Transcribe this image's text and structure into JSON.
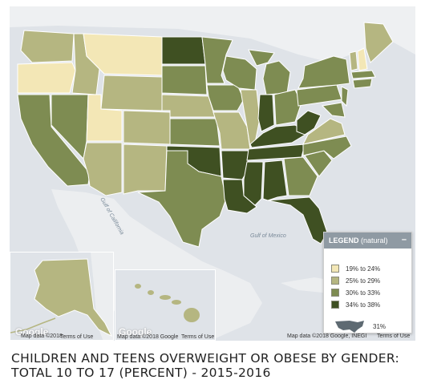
{
  "map": {
    "water_labels": [
      "Gulf of California",
      "Gulf of Mexico"
    ],
    "attribution_main": "Map data ©2018 Google, INEGI",
    "terms_main": "Terms of Use",
    "attribution_alaska": "Map data ©2018",
    "terms_alaska": "Terms of Use",
    "attribution_hawaii": "Map data ©2018 Google",
    "terms_hawaii": "Terms of Use",
    "logo_text": "Google"
  },
  "legend": {
    "title": "LEGEND",
    "subtitle": "(natural)",
    "toggle": "–",
    "classes": [
      {
        "label": "19% to 24%",
        "color": "#f3e7b6"
      },
      {
        "label": "25% to 29%",
        "color": "#b5b681"
      },
      {
        "label": "30% to 33%",
        "color": "#7e8c52"
      },
      {
        "label": "34% to 38%",
        "color": "#3f5022"
      }
    ],
    "us_value": "31%"
  },
  "caption": "CHILDREN AND TEENS OVERWEIGHT OR OBESE BY GENDER: TOTAL 10 TO 17 (PERCENT) - 2015-2016"
}
